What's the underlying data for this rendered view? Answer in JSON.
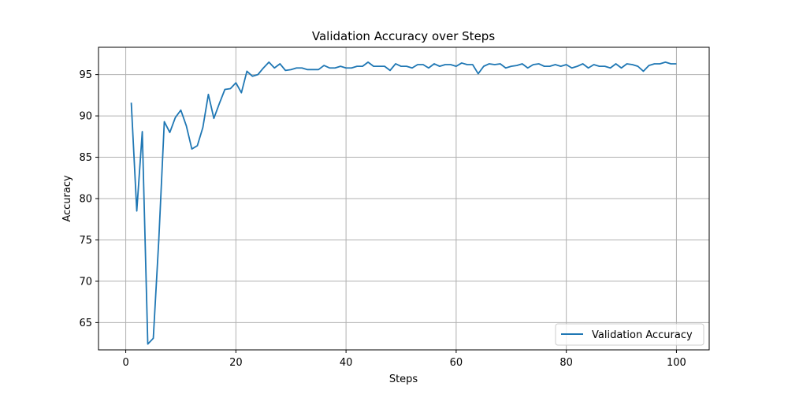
{
  "chart_data": {
    "type": "line",
    "title": "Validation Accuracy over Steps",
    "xlabel": "Steps",
    "ylabel": "Accuracy",
    "xlim": [
      -4.95,
      105.95
    ],
    "ylim": [
      61.7,
      98.3
    ],
    "xticks": [
      0,
      20,
      40,
      60,
      80,
      100
    ],
    "yticks": [
      65,
      70,
      75,
      80,
      85,
      90,
      95
    ],
    "grid": true,
    "legend": "lower-right",
    "series": [
      {
        "name": "Validation Accuracy",
        "color": "#1f77b4",
        "x": [
          1,
          2,
          3,
          4,
          5,
          6,
          7,
          8,
          9,
          10,
          11,
          12,
          13,
          14,
          15,
          16,
          17,
          18,
          19,
          20,
          21,
          22,
          23,
          24,
          25,
          26,
          27,
          28,
          29,
          30,
          31,
          32,
          33,
          34,
          35,
          36,
          37,
          38,
          39,
          40,
          41,
          42,
          43,
          44,
          45,
          46,
          47,
          48,
          49,
          50,
          51,
          52,
          53,
          54,
          55,
          56,
          57,
          58,
          59,
          60,
          61,
          62,
          63,
          64,
          65,
          66,
          67,
          68,
          69,
          70,
          71,
          72,
          73,
          74,
          75,
          76,
          77,
          78,
          79,
          80,
          81,
          82,
          83,
          84,
          85,
          86,
          87,
          88,
          89,
          90,
          91,
          92,
          93,
          94,
          95,
          96,
          97,
          98,
          99,
          100
        ],
        "y": [
          91.6,
          78.5,
          88.1,
          62.4,
          63.1,
          75.0,
          89.3,
          88.0,
          89.8,
          90.7,
          88.8,
          86.0,
          86.4,
          88.6,
          92.6,
          89.7,
          91.5,
          93.2,
          93.3,
          94.0,
          92.8,
          95.4,
          94.8,
          95.0,
          95.8,
          96.5,
          95.8,
          96.3,
          95.5,
          95.6,
          95.8,
          95.8,
          95.6,
          95.6,
          95.6,
          96.1,
          95.8,
          95.8,
          96.0,
          95.8,
          95.8,
          96.0,
          96.0,
          96.5,
          96.0,
          96.0,
          96.0,
          95.5,
          96.3,
          96.0,
          96.0,
          95.8,
          96.2,
          96.2,
          95.8,
          96.3,
          96.0,
          96.2,
          96.2,
          96.0,
          96.4,
          96.2,
          96.2,
          95.1,
          96.0,
          96.3,
          96.2,
          96.3,
          95.8,
          96.0,
          96.1,
          96.3,
          95.8,
          96.2,
          96.3,
          96.0,
          96.0,
          96.2,
          96.0,
          96.2,
          95.8,
          96.0,
          96.3,
          95.8,
          96.2,
          96.0,
          96.0,
          95.8,
          96.3,
          95.8,
          96.3,
          96.2,
          96.0,
          95.4,
          96.1,
          96.3,
          96.3,
          96.5,
          96.3,
          96.3
        ]
      }
    ]
  }
}
